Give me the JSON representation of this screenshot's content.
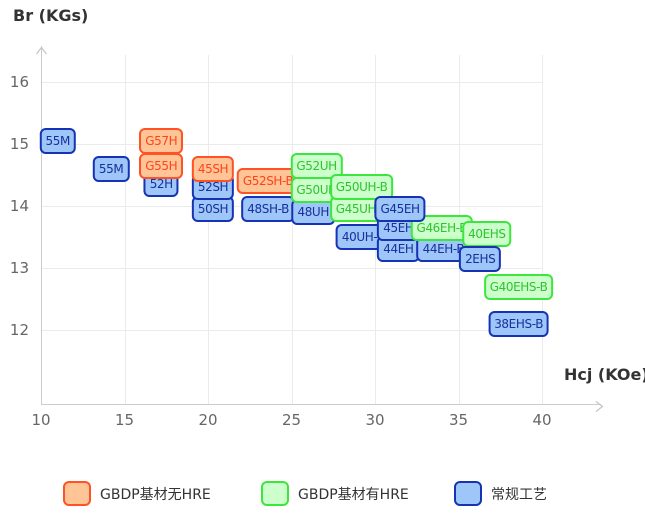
{
  "colors": {
    "orange": {
      "fill": "#ffc596",
      "border": "#ff5226",
      "text": "#ff431c"
    },
    "green": {
      "fill": "#ccffcc",
      "border": "#3ce63c",
      "text": "#2ec42e"
    },
    "blue": {
      "fill": "#9fc6f8",
      "border": "#1533b4",
      "text": "#16309c"
    },
    "grid": "#ebebeb",
    "axis": "#cccccc",
    "tick_text": "#666666",
    "title_text": "#333333"
  },
  "chart_data": {
    "type": "scatter",
    "title": "",
    "xlabel": "Hcj (KOe)",
    "ylabel": "Br (KGs)",
    "x_ticks": [
      10,
      15,
      20,
      25,
      30,
      35,
      40
    ],
    "y_ticks": [
      16,
      15,
      14,
      13,
      12
    ],
    "xlim": [
      10,
      43.5
    ],
    "ylim": [
      10.8,
      16.6
    ],
    "grid": true,
    "legend_position": "bottom",
    "series_legend": [
      {
        "name": "GBDP基材无HRE",
        "color": "orange"
      },
      {
        "name": "GBDP基材有HRE",
        "color": "green"
      },
      {
        "name": "常规工艺",
        "color": "blue"
      }
    ],
    "points": [
      {
        "label": "55M",
        "series": "blue",
        "x": 11.0,
        "y": 15.05,
        "z": 3
      },
      {
        "label": "55M",
        "series": "blue",
        "x": 14.2,
        "y": 14.6,
        "z": 3
      },
      {
        "label": "G57H",
        "series": "orange",
        "x": 17.2,
        "y": 15.05,
        "z": 6
      },
      {
        "label": "G55H",
        "series": "orange",
        "x": 17.2,
        "y": 14.65,
        "z": 5
      },
      {
        "label": "52H",
        "series": "blue",
        "x": 17.2,
        "y": 14.35,
        "z": 4
      },
      {
        "label": "45SH",
        "series": "orange",
        "x": 20.3,
        "y": 14.6,
        "z": 6
      },
      {
        "label": "52SH",
        "series": "blue",
        "x": 20.3,
        "y": 14.3,
        "z": 5
      },
      {
        "label": "50SH",
        "series": "blue",
        "x": 20.3,
        "y": 13.95,
        "z": 4
      },
      {
        "label": "G52SH-B",
        "series": "orange",
        "x": 23.6,
        "y": 14.4,
        "z": 5
      },
      {
        "label": "48SH-B",
        "series": "blue",
        "x": 23.6,
        "y": 13.95,
        "z": 4
      },
      {
        "label": "G52UH",
        "series": "green",
        "x": 26.5,
        "y": 14.65,
        "z": 6
      },
      {
        "label": "G50UH",
        "series": "green",
        "x": 26.5,
        "y": 14.25,
        "z": 5
      },
      {
        "label": "48UH",
        "series": "blue",
        "x": 26.3,
        "y": 13.9,
        "z": 4
      },
      {
        "label": "G50UH-B",
        "series": "green",
        "x": 29.2,
        "y": 14.3,
        "z": 6
      },
      {
        "label": "G45UH-B",
        "series": "green",
        "x": 29.2,
        "y": 13.95,
        "z": 5
      },
      {
        "label": "40UH-B",
        "series": "blue",
        "x": 29.3,
        "y": 13.5,
        "z": 4
      },
      {
        "label": "G45EH",
        "series": "blue",
        "x": 31.5,
        "y": 13.95,
        "z": 7
      },
      {
        "label": "45EH",
        "series": "blue",
        "x": 31.4,
        "y": 13.65,
        "z": 6
      },
      {
        "label": "44EH",
        "series": "blue",
        "x": 31.4,
        "y": 13.3,
        "z": 5
      },
      {
        "label": "G46EH-B",
        "series": "green",
        "x": 34.0,
        "y": 13.65,
        "z": 6
      },
      {
        "label": "44EH-B",
        "series": "blue",
        "x": 34.1,
        "y": 13.3,
        "z": 5
      },
      {
        "label": "40EHS",
        "series": "green",
        "x": 36.7,
        "y": 13.55,
        "z": 6
      },
      {
        "label": "2EHS",
        "series": "blue",
        "x": 36.3,
        "y": 13.15,
        "z": 7
      },
      {
        "label": "G40EHS-B",
        "series": "green",
        "x": 38.6,
        "y": 12.7,
        "z": 3
      },
      {
        "label": "38EHS-B",
        "series": "blue",
        "x": 38.6,
        "y": 12.1,
        "z": 3
      }
    ]
  }
}
